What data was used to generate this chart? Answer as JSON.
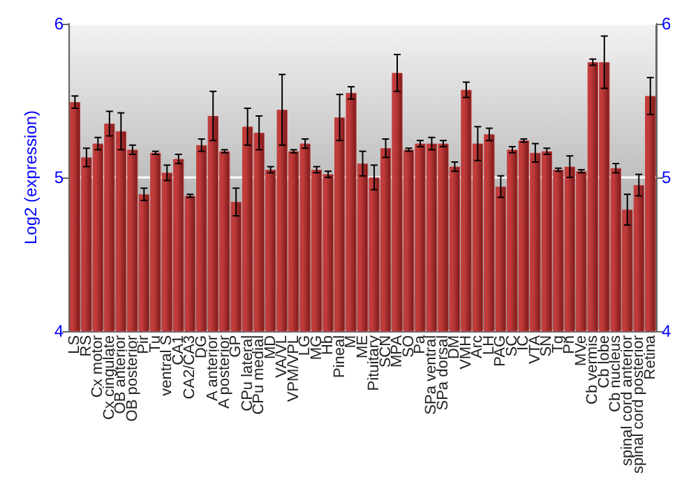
{
  "chart_data": {
    "type": "bar",
    "ylabel": "Log2 (expression)",
    "categories": [
      "LS",
      "RS",
      "Cx motor",
      "Cx cingulate",
      "OB anterior",
      "OB posterior",
      "Pir",
      "Tu",
      "ventral S",
      "CA1",
      "CA2/CA3",
      "DG",
      "A anterior",
      "A posterior",
      "GP",
      "CPu lateral",
      "CPu medial",
      "MD",
      "VA/VL",
      "VPM/VPL",
      "LG",
      "MG",
      "Hb",
      "Pineal",
      "M",
      "ME",
      "Pituitary",
      "SCN",
      "MPA",
      "SO",
      "Pa",
      "SPa ventral",
      "SPa dorsal",
      "DM",
      "VMH",
      "Arc",
      "LH",
      "PAG",
      "SC",
      "IC",
      "VTA",
      "SN",
      "Tg",
      "Pn",
      "MVe",
      "Cb vermis",
      "Cb lobe",
      "Cb nucleus",
      "spinal cord anterior",
      "spinal cord posterior",
      "Retina"
    ],
    "values": [
      5.49,
      5.13,
      5.22,
      5.35,
      5.3,
      5.18,
      4.89,
      5.16,
      5.03,
      5.12,
      4.88,
      5.21,
      5.4,
      5.17,
      4.84,
      5.33,
      5.29,
      5.05,
      5.44,
      5.17,
      5.22,
      5.05,
      5.02,
      5.39,
      5.55,
      5.09,
      5.0,
      5.19,
      5.68,
      5.18,
      5.22,
      5.22,
      5.22,
      5.07,
      5.57,
      5.22,
      5.28,
      4.94,
      5.18,
      5.24,
      5.16,
      5.17,
      5.05,
      5.07,
      5.04,
      5.75,
      5.75,
      5.06,
      4.79,
      4.95,
      5.53
    ],
    "errors": [
      0.04,
      0.06,
      0.04,
      0.08,
      0.12,
      0.03,
      0.04,
      0.01,
      0.05,
      0.03,
      0.01,
      0.04,
      0.16,
      0.01,
      0.09,
      0.12,
      0.11,
      0.02,
      0.23,
      0.01,
      0.03,
      0.02,
      0.02,
      0.15,
      0.04,
      0.08,
      0.08,
      0.06,
      0.12,
      0.01,
      0.02,
      0.04,
      0.02,
      0.03,
      0.05,
      0.11,
      0.04,
      0.07,
      0.02,
      0.01,
      0.06,
      0.02,
      0.01,
      0.07,
      0.01,
      0.02,
      0.17,
      0.03,
      0.1,
      0.07,
      0.12
    ],
    "color": "#c23b3b",
    "ylim": [
      4,
      6
    ],
    "yticks": [
      4,
      5,
      6
    ],
    "y2lim": [
      4,
      6
    ],
    "y2ticks": [
      4,
      5,
      6
    ],
    "grid": "y"
  }
}
